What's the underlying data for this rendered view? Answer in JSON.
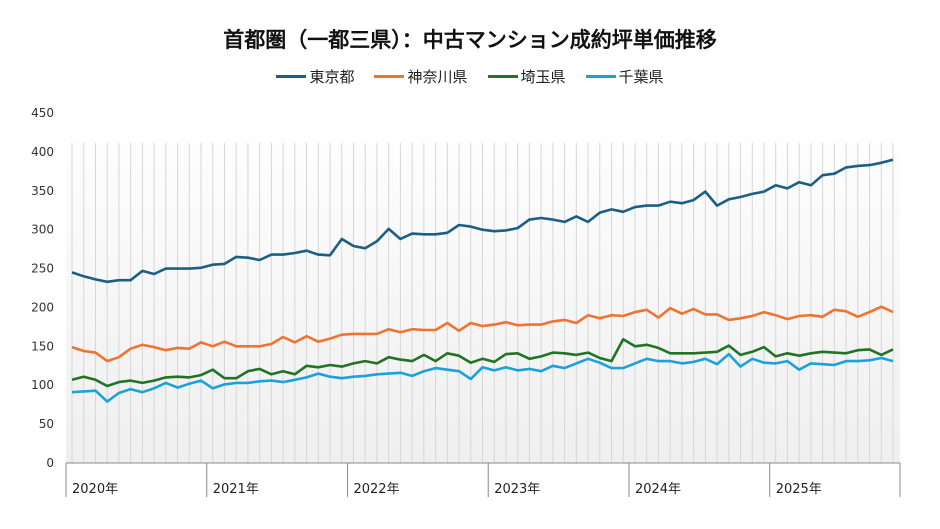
{
  "chart_data": {
    "type": "line",
    "title": "首都圏（一都三県）：中古マンション成約坪単価推移",
    "xlabel": "",
    "ylabel": "",
    "ylim": [
      0,
      450
    ],
    "yticks": [
      0,
      50,
      100,
      150,
      200,
      250,
      300,
      350,
      400,
      450
    ],
    "x_start": "2020-01",
    "x_frequency": "monthly",
    "year_labels": [
      "2020年",
      "2021年",
      "2022年",
      "2023年",
      "2024年",
      "2025年"
    ],
    "grid": "vertical monthly lines",
    "legend_position": "top",
    "series": [
      {
        "name": "東京都",
        "color": "#1c5f85",
        "values": [
          245,
          240,
          236,
          233,
          235,
          235,
          247,
          243,
          250,
          250,
          250,
          251,
          255,
          256,
          265,
          264,
          261,
          268,
          268,
          270,
          273,
          268,
          267,
          288,
          279,
          276,
          285,
          301,
          288,
          295,
          294,
          294,
          296,
          306,
          304,
          300,
          298,
          299,
          302,
          313,
          315,
          313,
          310,
          317,
          310,
          322,
          326,
          323,
          329,
          331,
          331,
          336,
          334,
          338,
          349,
          331,
          339,
          342,
          346,
          349,
          357,
          353,
          361,
          357,
          370,
          372,
          380,
          382,
          383,
          386,
          390
        ]
      },
      {
        "name": "神奈川県",
        "color": "#ef7430",
        "values": [
          149,
          144,
          142,
          131,
          136,
          147,
          152,
          149,
          145,
          148,
          147,
          155,
          150,
          156,
          150,
          150,
          150,
          153,
          162,
          155,
          163,
          156,
          160,
          165,
          166,
          166,
          166,
          172,
          168,
          172,
          171,
          171,
          180,
          170,
          180,
          176,
          178,
          181,
          177,
          178,
          178,
          182,
          184,
          180,
          190,
          186,
          190,
          189,
          194,
          197,
          187,
          199,
          192,
          198,
          191,
          191,
          184,
          186,
          189,
          194,
          190,
          185,
          189,
          190,
          188,
          197,
          195,
          188,
          194,
          201,
          194
        ]
      },
      {
        "name": "埼玉県",
        "color": "#217325",
        "values": [
          107,
          111,
          107,
          99,
          104,
          106,
          103,
          106,
          110,
          111,
          110,
          113,
          120,
          109,
          109,
          118,
          121,
          114,
          118,
          114,
          125,
          123,
          126,
          124,
          128,
          131,
          128,
          136,
          133,
          131,
          139,
          131,
          141,
          138,
          129,
          134,
          130,
          140,
          141,
          134,
          137,
          142,
          141,
          139,
          142,
          135,
          131,
          159,
          150,
          152,
          148,
          141,
          141,
          141,
          142,
          143,
          151,
          139,
          143,
          149,
          137,
          141,
          138,
          141,
          143,
          142,
          141,
          145,
          146,
          139,
          146
        ]
      },
      {
        "name": "千葉県",
        "color": "#1ba1dc",
        "values": [
          91,
          92,
          93,
          79,
          90,
          95,
          91,
          96,
          103,
          97,
          102,
          106,
          96,
          101,
          103,
          103,
          105,
          106,
          104,
          107,
          110,
          115,
          111,
          109,
          111,
          112,
          114,
          115,
          116,
          112,
          118,
          122,
          120,
          118,
          108,
          123,
          119,
          123,
          119,
          121,
          118,
          125,
          122,
          128,
          134,
          129,
          122,
          122,
          128,
          134,
          131,
          131,
          128,
          130,
          134,
          127,
          140,
          124,
          134,
          129,
          128,
          131,
          120,
          128,
          127,
          126,
          131,
          131,
          132,
          135,
          131
        ]
      }
    ]
  }
}
